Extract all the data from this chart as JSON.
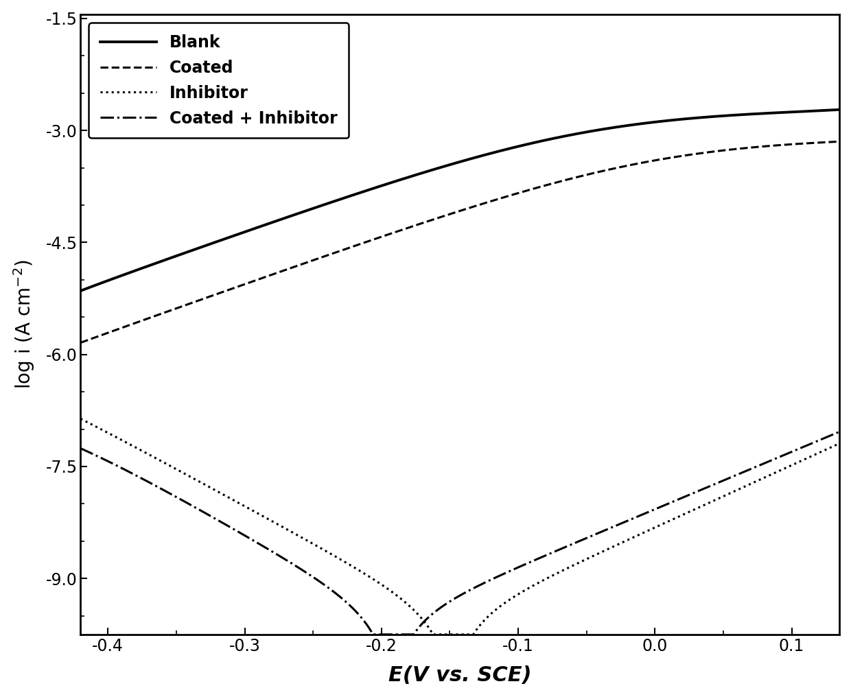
{
  "title": "",
  "xlabel": "E(V vs. SCE)",
  "ylabel": "log i (A cm$^{-2}$)",
  "xlim": [
    -0.42,
    0.135
  ],
  "ylim": [
    -9.75,
    -1.45
  ],
  "xticks": [
    -0.4,
    -0.3,
    -0.2,
    -0.1,
    0.0,
    0.1
  ],
  "yticks": [
    -9.0,
    -7.5,
    -6.0,
    -4.5,
    -3.0,
    -1.5
  ],
  "legend_labels": [
    "Blank",
    "Coated",
    "Inhibitor",
    "Coated + Inhibitor"
  ],
  "background_color": "#ffffff",
  "line_color": "#000000",
  "linewidth_blank": 2.8,
  "linewidth": 2.2,
  "legend_fontsize": 17,
  "axis_label_fontsize": 22,
  "tick_fontsize": 17,
  "curves": {
    "blank": {
      "E_corr": -0.19,
      "log_i_corr": -8.35,
      "ba": 0.058,
      "bc": 0.13,
      "ilim_cat": -4.5,
      "ilim_an": -2.72,
      "E_pass": -0.05
    },
    "coated": {
      "E_corr": -0.178,
      "log_i_corr": -9.35,
      "ba": 0.06,
      "bc": 0.148,
      "ilim_cat": -6.0,
      "ilim_an": -3.1,
      "E_pass": 0.0
    },
    "inhib": {
      "E_corr": -0.148,
      "log_i_corr": -9.55,
      "ba": 0.12,
      "bc": 0.1,
      "ilim_cat": -5.7,
      "ilim_an": null,
      "E_pass": null
    },
    "ci": {
      "E_corr": -0.192,
      "log_i_corr": -9.55,
      "ba": 0.13,
      "bc": 0.095,
      "ilim_cat": -6.6,
      "ilim_an": null,
      "E_pass": null
    }
  }
}
